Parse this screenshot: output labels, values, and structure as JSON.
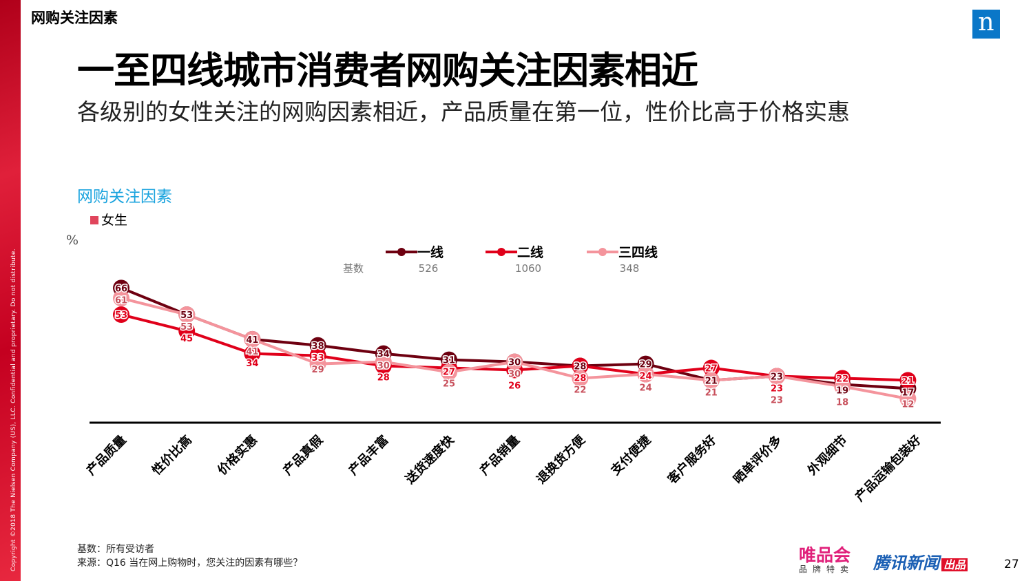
{
  "sidebar": {
    "copyright": "Copyright ©2018 The Nielsen Company (US), LLC. Confidential and proprietary. Do not distribute."
  },
  "header": {
    "tag": "网购关注因素",
    "logo": "n",
    "title": "一至四线城市消费者网购关注因素相近",
    "subtitle": "各级别的女性关注的网购因素相近，产品质量在第一位，性价比高于价格实惠"
  },
  "chart_data": {
    "type": "line",
    "title": "网购关注因素",
    "subtitle": "女生",
    "ylabel": "%",
    "base_label": "基数",
    "categories": [
      "产品质量",
      "性价比高",
      "价格实惠",
      "产品真假",
      "产品丰富",
      "送货速度快",
      "产品销量",
      "退换货方便",
      "支付便捷",
      "客户服务好",
      "晒单评价多",
      "外观细节",
      "产品运输包装好"
    ],
    "series": [
      {
        "name": "一线",
        "base": "526",
        "color": "#6e0010",
        "text": "#fff",
        "values": [
          66,
          53,
          41,
          38,
          34,
          31,
          30,
          28,
          29,
          21,
          23,
          19,
          17
        ]
      },
      {
        "name": "二线",
        "base": "1060",
        "color": "#e0001a",
        "text": "#fff",
        "values": [
          53,
          45,
          34,
          33,
          28,
          27,
          26,
          28,
          24,
          27,
          23,
          22,
          21
        ]
      },
      {
        "name": "三四线",
        "base": "348",
        "color": "#f4949c",
        "text": "#222",
        "values": [
          61,
          53,
          41,
          29,
          30,
          25,
          30,
          22,
          24,
          21,
          23,
          18,
          12
        ]
      }
    ],
    "ylim": [
      0,
      70
    ],
    "grid": false,
    "legend": "top"
  },
  "footer": {
    "base": "基数：所有受访者",
    "source": "来源：Q16 当在网上购物时，您关注的因素有哪些？",
    "brand1": "唯品会",
    "brand1_sub": "品牌特卖",
    "brand2": "腾讯新闻",
    "brand2_tag": "出品",
    "page": "27"
  }
}
